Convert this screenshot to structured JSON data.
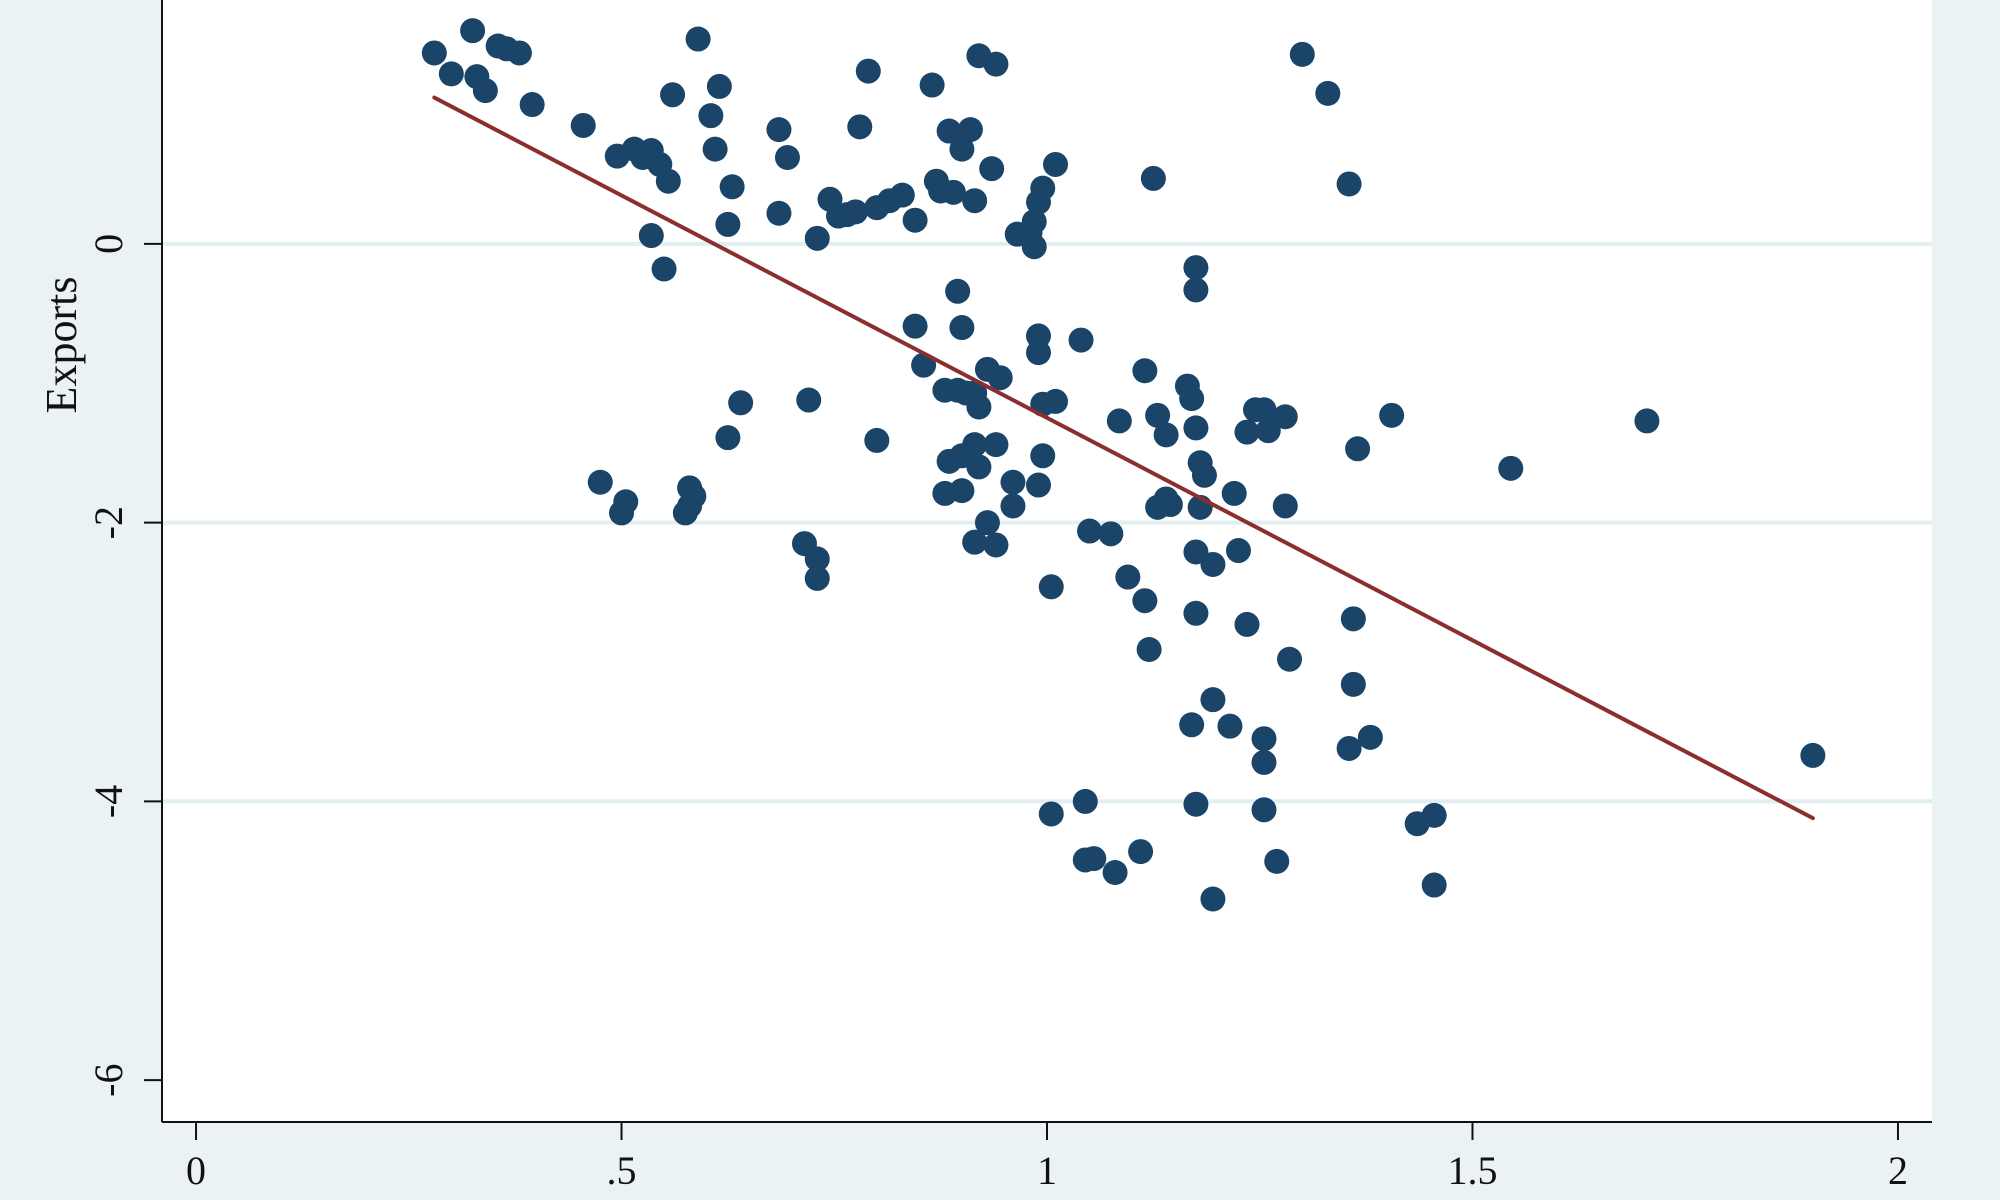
{
  "chart_data": {
    "type": "scatter",
    "title": "",
    "xlabel": "",
    "ylabel": "Exports",
    "xlim": [
      -0.04,
      2.04
    ],
    "ylim": [
      -6.3,
      1.75
    ],
    "x_ticks": [
      {
        "value": 0,
        "label": "0"
      },
      {
        "value": 0.5,
        "label": ".5"
      },
      {
        "value": 1,
        "label": "1"
      },
      {
        "value": 1.5,
        "label": "1.5"
      },
      {
        "value": 2,
        "label": "2"
      }
    ],
    "y_ticks": [
      {
        "value": 0,
        "label": "0"
      },
      {
        "value": -2,
        "label": "-2"
      },
      {
        "value": -4,
        "label": "-4"
      },
      {
        "value": -6,
        "label": "-6"
      }
    ],
    "grid": "horizontal",
    "colors": {
      "points": "#1b4469",
      "fit_line": "#8b2e2e",
      "plot_bg": "#ffffff",
      "outer_bg": "#eaf2f3",
      "grid": "#e3eef0"
    },
    "fit_line": {
      "x": [
        0.28,
        1.9
      ],
      "y": [
        1.05,
        -4.12
      ]
    },
    "points": [
      [
        0.28,
        1.37
      ],
      [
        0.3,
        1.22
      ],
      [
        0.325,
        1.53
      ],
      [
        0.33,
        1.2
      ],
      [
        0.34,
        1.1
      ],
      [
        0.355,
        1.42
      ],
      [
        0.365,
        1.4
      ],
      [
        0.38,
        1.37
      ],
      [
        0.395,
        1.0
      ],
      [
        0.455,
        0.85
      ],
      [
        0.495,
        0.63
      ],
      [
        0.515,
        0.68
      ],
      [
        0.525,
        0.62
      ],
      [
        0.535,
        0.67
      ],
      [
        0.545,
        0.57
      ],
      [
        0.555,
        0.45
      ],
      [
        0.56,
        1.07
      ],
      [
        0.59,
        1.47
      ],
      [
        0.605,
        0.92
      ],
      [
        0.61,
        0.68
      ],
      [
        0.615,
        1.13
      ],
      [
        0.625,
        0.14
      ],
      [
        0.63,
        0.41
      ],
      [
        0.535,
        0.06
      ],
      [
        0.55,
        -0.18
      ],
      [
        0.685,
        0.82
      ],
      [
        0.695,
        0.62
      ],
      [
        0.685,
        0.22
      ],
      [
        0.73,
        0.04
      ],
      [
        0.745,
        0.32
      ],
      [
        0.755,
        0.2
      ],
      [
        0.765,
        0.21
      ],
      [
        0.775,
        0.23
      ],
      [
        0.78,
        0.84
      ],
      [
        0.79,
        1.24
      ],
      [
        0.8,
        0.26
      ],
      [
        0.815,
        0.31
      ],
      [
        0.83,
        0.35
      ],
      [
        0.845,
        0.17
      ],
      [
        0.865,
        1.14
      ],
      [
        0.87,
        0.45
      ],
      [
        0.875,
        0.38
      ],
      [
        0.885,
        0.81
      ],
      [
        0.89,
        0.37
      ],
      [
        0.9,
        0.68
      ],
      [
        0.91,
        0.82
      ],
      [
        0.915,
        0.31
      ],
      [
        0.92,
        1.35
      ],
      [
        0.935,
        0.54
      ],
      [
        0.94,
        1.29
      ],
      [
        0.965,
        0.07
      ],
      [
        0.98,
        0.08
      ],
      [
        0.985,
        0.16
      ],
      [
        0.99,
        0.3
      ],
      [
        0.995,
        0.4
      ],
      [
        0.985,
        -0.02
      ],
      [
        1.01,
        0.57
      ],
      [
        1.125,
        0.47
      ],
      [
        1.3,
        1.36
      ],
      [
        1.33,
        1.08
      ],
      [
        1.355,
        0.43
      ],
      [
        0.845,
        -0.59
      ],
      [
        0.855,
        -0.87
      ],
      [
        0.88,
        -1.05
      ],
      [
        0.895,
        -0.34
      ],
      [
        0.895,
        -1.05
      ],
      [
        0.9,
        -0.6
      ],
      [
        0.905,
        -1.07
      ],
      [
        0.915,
        -1.07
      ],
      [
        0.92,
        -1.17
      ],
      [
        0.93,
        -0.9
      ],
      [
        0.945,
        -0.96
      ],
      [
        0.99,
        -0.66
      ],
      [
        0.99,
        -0.78
      ],
      [
        0.995,
        -1.15
      ],
      [
        1.01,
        -1.13
      ],
      [
        1.04,
        -0.69
      ],
      [
        0.64,
        -1.14
      ],
      [
        0.625,
        -1.39
      ],
      [
        0.72,
        -1.12
      ],
      [
        0.8,
        -1.41
      ],
      [
        0.885,
        -1.56
      ],
      [
        0.9,
        -1.52
      ],
      [
        0.915,
        -1.44
      ],
      [
        0.92,
        -1.6
      ],
      [
        0.94,
        -1.44
      ],
      [
        0.96,
        -1.71
      ],
      [
        0.96,
        -1.88
      ],
      [
        0.99,
        -1.73
      ],
      [
        0.995,
        -1.52
      ],
      [
        0.88,
        -1.79
      ],
      [
        0.9,
        -1.77
      ],
      [
        0.93,
        -2.0
      ],
      [
        0.915,
        -2.14
      ],
      [
        0.94,
        -2.16
      ],
      [
        0.475,
        -1.71
      ],
      [
        0.5,
        -1.93
      ],
      [
        0.505,
        -1.85
      ],
      [
        0.575,
        -1.93
      ],
      [
        0.58,
        -1.88
      ],
      [
        0.58,
        -1.75
      ],
      [
        0.585,
        -1.81
      ],
      [
        0.715,
        -2.15
      ],
      [
        0.73,
        -2.26
      ],
      [
        0.73,
        -2.4
      ],
      [
        1.005,
        -2.46
      ],
      [
        1.05,
        -2.06
      ],
      [
        1.075,
        -2.08
      ],
      [
        1.095,
        -2.39
      ],
      [
        1.115,
        -2.56
      ],
      [
        1.12,
        -2.91
      ],
      [
        1.085,
        -1.27
      ],
      [
        1.115,
        -0.91
      ],
      [
        1.13,
        -1.23
      ],
      [
        1.14,
        -1.37
      ],
      [
        1.165,
        -1.02
      ],
      [
        1.17,
        -1.11
      ],
      [
        1.175,
        -1.32
      ],
      [
        1.18,
        -1.57
      ],
      [
        1.185,
        -1.66
      ],
      [
        1.175,
        -0.17
      ],
      [
        1.175,
        -0.33
      ],
      [
        1.14,
        -1.83
      ],
      [
        1.145,
        -1.87
      ],
      [
        1.13,
        -1.89
      ],
      [
        1.18,
        -1.89
      ],
      [
        1.175,
        -2.21
      ],
      [
        1.195,
        -2.3
      ],
      [
        1.22,
        -1.79
      ],
      [
        1.225,
        -2.2
      ],
      [
        1.175,
        -2.65
      ],
      [
        1.235,
        -2.73
      ],
      [
        1.235,
        -1.35
      ],
      [
        1.245,
        -1.19
      ],
      [
        1.255,
        -1.19
      ],
      [
        1.26,
        -1.34
      ],
      [
        1.28,
        -1.24
      ],
      [
        1.28,
        -1.88
      ],
      [
        1.285,
        -2.98
      ],
      [
        1.365,
        -1.47
      ],
      [
        1.405,
        -1.23
      ],
      [
        1.545,
        -1.61
      ],
      [
        1.705,
        -1.27
      ],
      [
        1.9,
        -3.67
      ],
      [
        1.36,
        -2.69
      ],
      [
        1.36,
        -3.16
      ],
      [
        1.38,
        -3.54
      ],
      [
        1.355,
        -3.62
      ],
      [
        1.195,
        -3.27
      ],
      [
        1.17,
        -3.45
      ],
      [
        1.215,
        -3.46
      ],
      [
        1.255,
        -3.55
      ],
      [
        1.255,
        -3.72
      ],
      [
        1.175,
        -4.02
      ],
      [
        1.255,
        -4.06
      ],
      [
        1.27,
        -4.43
      ],
      [
        1.195,
        -4.7
      ],
      [
        1.005,
        -4.09
      ],
      [
        1.045,
        -4.0
      ],
      [
        1.045,
        -4.42
      ],
      [
        1.055,
        -4.41
      ],
      [
        1.08,
        -4.51
      ],
      [
        1.11,
        -4.36
      ],
      [
        1.435,
        -4.16
      ],
      [
        1.455,
        -4.1
      ],
      [
        1.455,
        -4.6
      ]
    ]
  }
}
